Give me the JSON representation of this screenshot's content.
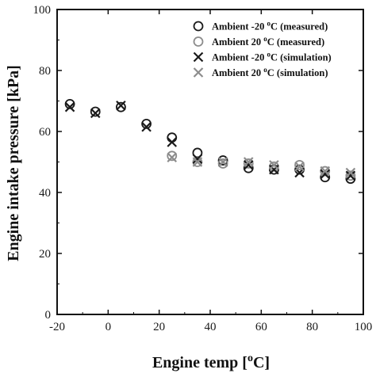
{
  "chart_data": {
    "type": "scatter",
    "xlabel": {
      "prefix": "Engine  temp [",
      "sup": "o",
      "suffix": "C]"
    },
    "ylabel": "Engine intake pressure [kPa]",
    "xlim": [
      -20,
      100
    ],
    "ylim": [
      0,
      100
    ],
    "xticks": [
      -20,
      0,
      20,
      40,
      60,
      80,
      100
    ],
    "yticks": [
      0,
      20,
      40,
      60,
      80,
      100
    ],
    "xtick_labels": [
      "-20",
      "0",
      "20",
      "40",
      "60",
      "80",
      "100"
    ],
    "ytick_labels": [
      "0",
      "20",
      "40",
      "60",
      "80",
      "100"
    ],
    "grid": false,
    "legend_position": "top-right",
    "series": [
      {
        "name": "Ambient -20 °C (measured)",
        "legend": {
          "pre": "Ambient -20 ",
          "sup": "o",
          "post": "C (measured)"
        },
        "marker": "circle",
        "color": "#1a1a1a",
        "x": [
          -15,
          -5,
          5,
          15,
          25,
          35,
          45,
          55,
          65,
          75,
          85,
          95
        ],
        "y": [
          69,
          66.5,
          68,
          62.5,
          58,
          53,
          50.5,
          48,
          47.5,
          47.5,
          45,
          44.5
        ]
      },
      {
        "name": "Ambient 20 °C (measured)",
        "legend": {
          "pre": "Ambient 20 ",
          "sup": "o",
          "post": "C (measured)"
        },
        "marker": "circle",
        "color": "#8c8c8c",
        "x": [
          25,
          35,
          45,
          55,
          65,
          75,
          85,
          95
        ],
        "y": [
          52,
          50,
          49.5,
          49.5,
          48.5,
          49,
          47,
          45.5
        ]
      },
      {
        "name": "Ambient -20 °C (simulation)",
        "legend": {
          "pre": "Ambient -20 ",
          "sup": "o",
          "post": "C (simulation)"
        },
        "marker": "x",
        "color": "#1a1a1a",
        "x": [
          -15,
          -5,
          5,
          15,
          25,
          35,
          45,
          55,
          65,
          75,
          85,
          95
        ],
        "y": [
          68,
          66,
          68.5,
          61.5,
          56.5,
          51,
          50,
          49,
          47.5,
          46.5,
          46,
          45.5
        ]
      },
      {
        "name": "Ambient 20 °C (simulation)",
        "legend": {
          "pre": "Ambient 20 ",
          "sup": "o",
          "post": "C (simulation)"
        },
        "marker": "x",
        "color": "#8c8c8c",
        "x": [
          25,
          35,
          45,
          55,
          65,
          75,
          85,
          95
        ],
        "y": [
          51.5,
          50,
          50,
          50,
          49,
          48.5,
          47,
          46.5
        ]
      }
    ]
  }
}
